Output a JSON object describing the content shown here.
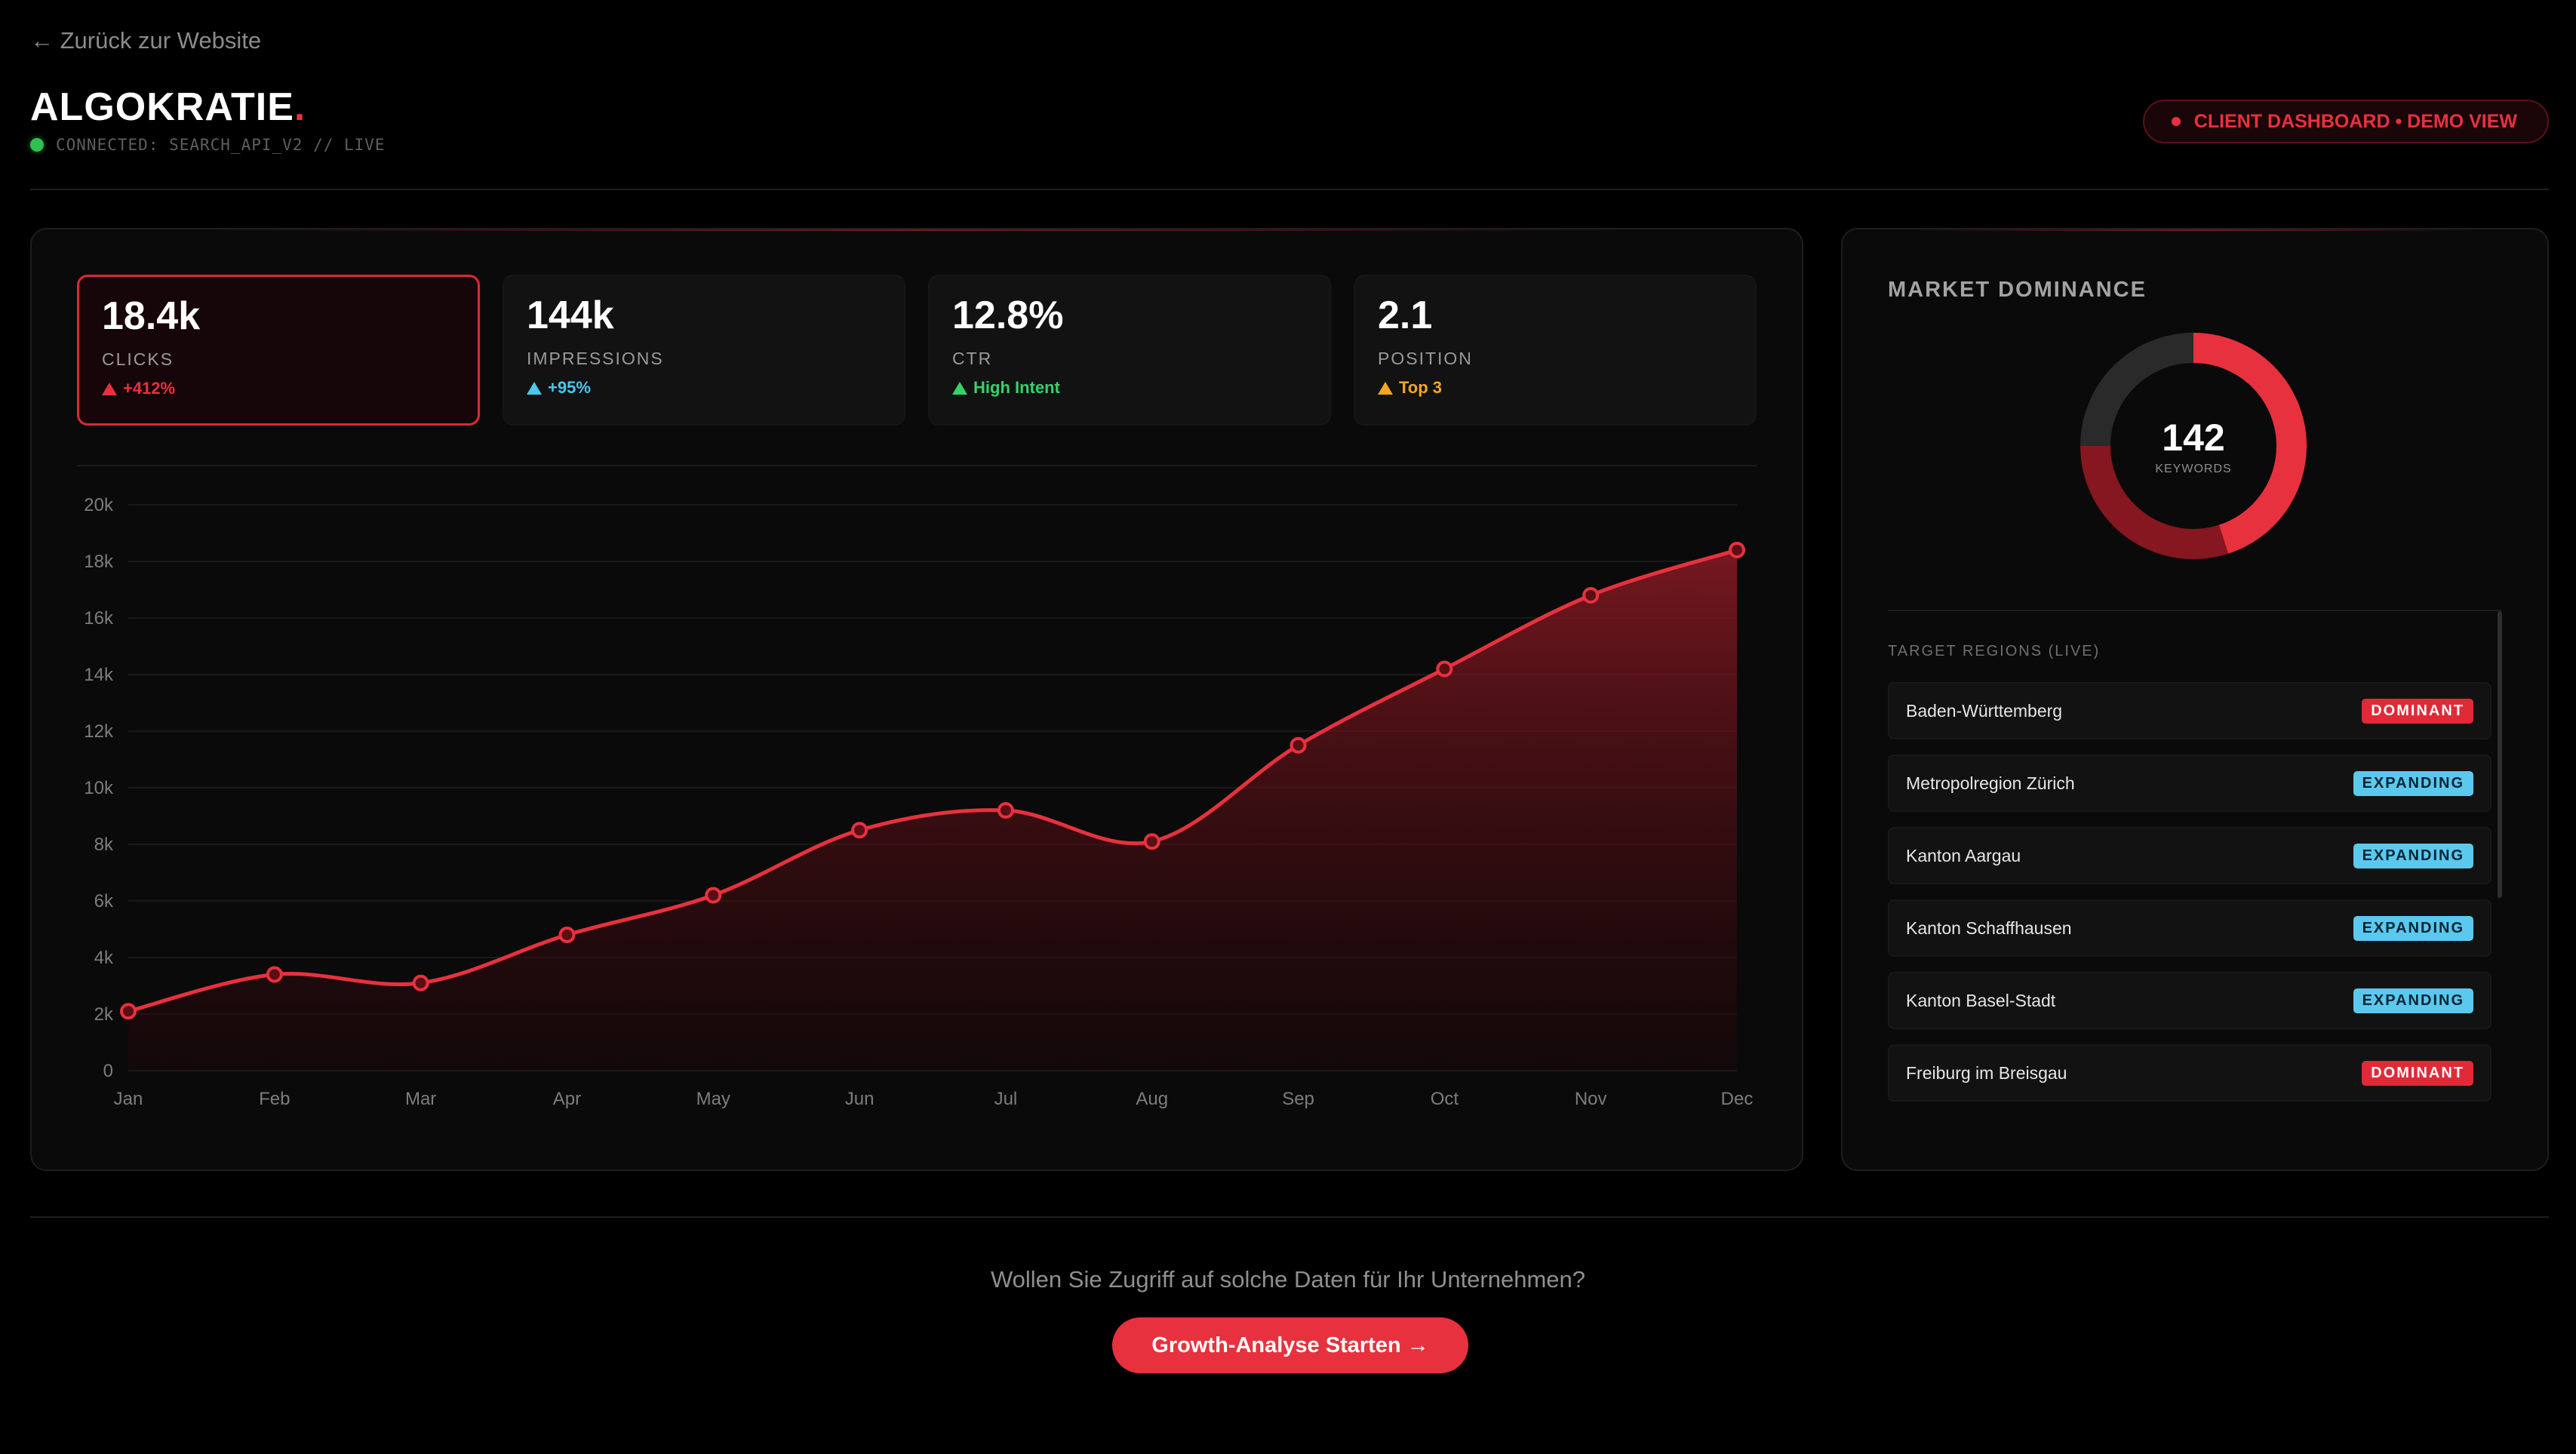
{
  "header": {
    "back_link": "← Zurück zur Website",
    "brand": "ALGOKRATIE",
    "brand_dot": ".",
    "status": "CONNECTED: SEARCH_API_V2 // LIVE",
    "mode_badge": "CLIENT DASHBOARD • DEMO VIEW"
  },
  "kpis": [
    {
      "value": "18.4k",
      "label": "CLICKS",
      "delta": "+412%"
    },
    {
      "value": "144k",
      "label": "IMPRESSIONS",
      "delta": "+95%"
    },
    {
      "value": "12.8%",
      "label": "CTR",
      "delta": "High Intent"
    },
    {
      "value": "2.1",
      "label": "POSITION",
      "delta": "Top 3"
    }
  ],
  "colors": {
    "accent": "#e8313e",
    "impressions": "#4cc7ee",
    "ctr": "#34d36a",
    "position": "#f5a623",
    "live": "#2fbf52"
  },
  "chart_data": {
    "type": "area",
    "categories": [
      "Jan",
      "Feb",
      "Mar",
      "Apr",
      "May",
      "Jun",
      "Jul",
      "Aug",
      "Sep",
      "Oct",
      "Nov",
      "Dec"
    ],
    "series": [
      {
        "values": [
          2100,
          3400,
          3100,
          4800,
          6200,
          8500,
          9200,
          8100,
          11500,
          14200,
          16800,
          18400
        ]
      }
    ],
    "ylim": [
      0,
      20000
    ],
    "yticks": [
      0,
      2000,
      4000,
      6000,
      8000,
      10000,
      12000,
      14000,
      16000,
      18000,
      20000
    ],
    "ytick_labels": [
      "0",
      "2k",
      "4k",
      "6k",
      "8k",
      "10k",
      "12k",
      "14k",
      "16k",
      "18k",
      "20k"
    ],
    "grid": true,
    "color": "#e8313e"
  },
  "market": {
    "title": "MARKET DOMINANCE",
    "keywords_value": "142",
    "keywords_label": "KEYWORDS",
    "donut_segments": [
      {
        "fraction": 0.45,
        "color": "#e8313e"
      },
      {
        "fraction": 0.3,
        "color": "#86161f"
      },
      {
        "fraction": 0.25,
        "color": "#2a2a2a"
      }
    ]
  },
  "regions": {
    "title": "TARGET REGIONS (LIVE)",
    "items": [
      {
        "name": "Baden-Württemberg",
        "status": "DOMINANT"
      },
      {
        "name": "Metropolregion Zürich",
        "status": "EXPANDING"
      },
      {
        "name": "Kanton Aargau",
        "status": "EXPANDING"
      },
      {
        "name": "Kanton Schaffhausen",
        "status": "EXPANDING"
      },
      {
        "name": "Kanton Basel-Stadt",
        "status": "EXPANDING"
      },
      {
        "name": "Freiburg im Breisgau",
        "status": "DOMINANT"
      }
    ]
  },
  "cta": {
    "question": "Wollen Sie Zugriff auf solche Daten für Ihr Unternehmen?",
    "button": "Growth-Analyse Starten →"
  }
}
